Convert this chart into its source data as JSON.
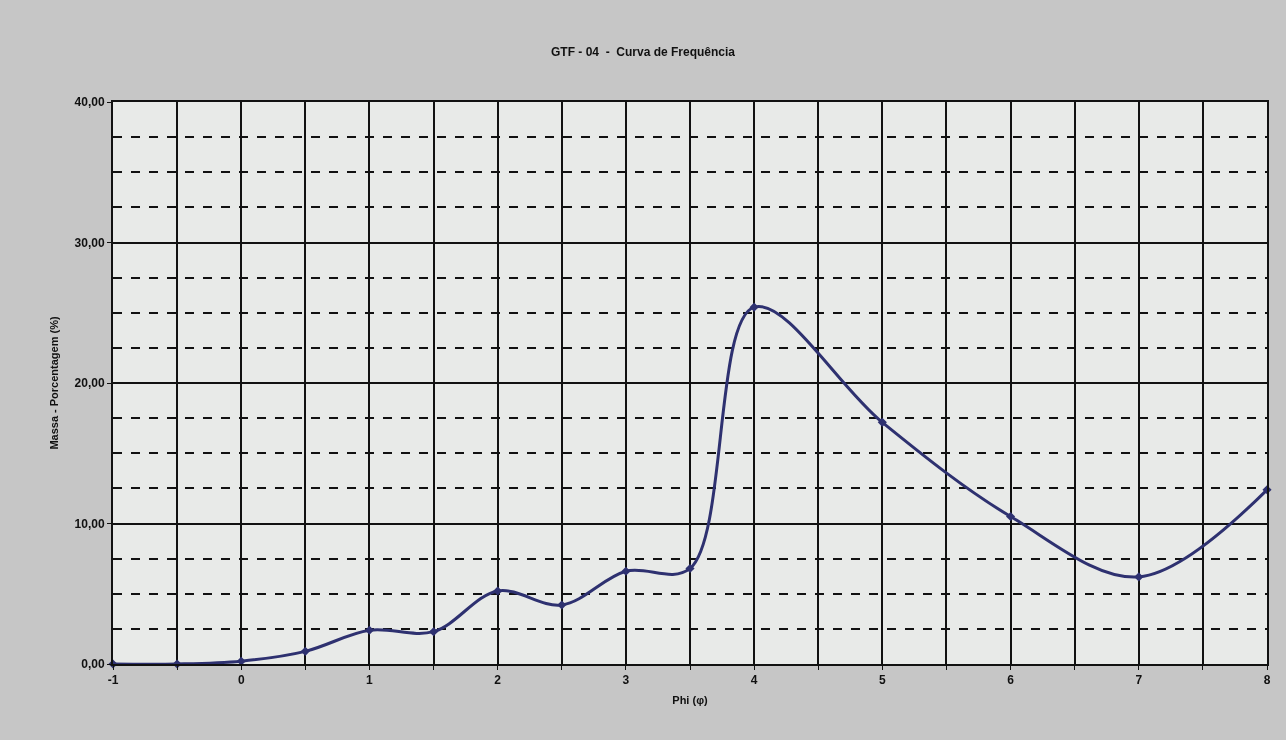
{
  "chart_data": {
    "type": "line",
    "title": "GTF - 04  -  Curva de Frequência",
    "xlabel": "Phi (φ)",
    "ylabel": "Massa - Porcentagem (%)",
    "x": [
      -1,
      -0.5,
      0,
      0.5,
      1,
      1.5,
      2,
      2.5,
      3,
      3.5,
      4,
      5,
      6,
      7,
      8
    ],
    "series": [
      {
        "color": "#2e3170",
        "values": [
          0,
          0,
          0.2,
          0.9,
          2.4,
          2.3,
          5.2,
          4.2,
          6.6,
          6.8,
          25.4,
          17.2,
          10.5,
          6.2,
          12.4
        ]
      }
    ],
    "xlim": [
      -1,
      8
    ],
    "xticks": [
      -1,
      {
        "value": -0.5,
        "label": null
      },
      0,
      {
        "value": 0.5,
        "label": null
      },
      1,
      {
        "value": 1.5,
        "label": null
      },
      2,
      {
        "value": 2.5,
        "label": null
      },
      3,
      {
        "value": 3.5,
        "label": null
      },
      4,
      {
        "value": 4.5,
        "label": null
      },
      5,
      {
        "value": 5.5,
        "label": null
      },
      6,
      {
        "value": 6.5,
        "label": null
      },
      7,
      {
        "value": 7.5,
        "label": null
      },
      8
    ],
    "ylim": [
      0,
      40
    ],
    "yticks": [
      {
        "value": 0,
        "label": "0,00"
      },
      {
        "value": 2.5,
        "label": null
      },
      {
        "value": 5,
        "label": null
      },
      {
        "value": 7.5,
        "label": null
      },
      {
        "value": 10,
        "label": "10,00"
      },
      {
        "value": 12.5,
        "label": null
      },
      {
        "value": 15,
        "label": null
      },
      {
        "value": 17.5,
        "label": null
      },
      {
        "value": 20,
        "label": "20,00"
      },
      {
        "value": 22.5,
        "label": null
      },
      {
        "value": 25,
        "label": null
      },
      {
        "value": 27.5,
        "label": null
      },
      {
        "value": 30,
        "label": "30,00"
      },
      {
        "value": 32.5,
        "label": null
      },
      {
        "value": 35,
        "label": null
      },
      {
        "value": 37.5,
        "label": null
      },
      {
        "value": 40,
        "label": "40,00"
      }
    ],
    "grid": true,
    "marker": "diamond",
    "line_style": "solid"
  }
}
